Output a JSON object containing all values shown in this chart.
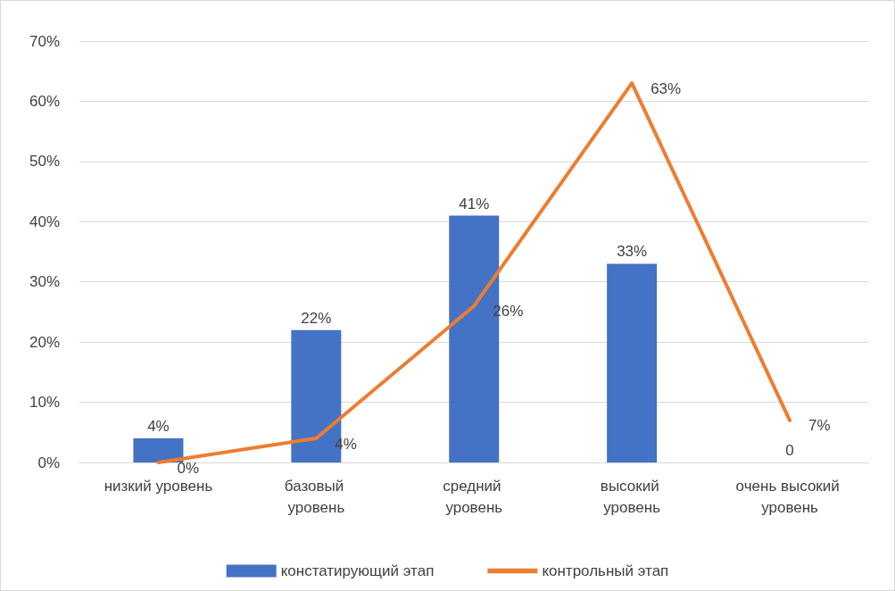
{
  "chart_data": {
    "type": "bar",
    "categories": [
      "низкий уровень",
      "базовый уровень",
      "средний уровень",
      "высокий уровень",
      "очень высокий уровень"
    ],
    "series": [
      {
        "name": "констатирующий этап",
        "color": "#4472c4",
        "values": [
          4,
          22,
          41,
          33,
          0
        ],
        "value_labels": [
          "4%",
          "22%",
          "41%",
          "33%",
          "0"
        ]
      },
      {
        "name": "контрольный этап",
        "type": "line",
        "color": "#ed7d31",
        "marker": "none",
        "values": [
          0,
          4,
          26,
          63,
          7
        ],
        "value_labels": [
          "0%",
          "4%",
          "26%",
          "63%",
          "7%"
        ]
      }
    ],
    "ylim": [
      0,
      70
    ],
    "yticks": [
      {
        "value": 0,
        "label": "0%"
      },
      {
        "value": 10,
        "label": "10%"
      },
      {
        "value": 20,
        "label": "20%"
      },
      {
        "value": 30,
        "label": "30%"
      },
      {
        "value": 40,
        "label": "40%"
      },
      {
        "value": 50,
        "label": "50%"
      },
      {
        "value": 60,
        "label": "60%"
      },
      {
        "value": 70,
        "label": "70%"
      }
    ],
    "grid": "y",
    "legend": "bottom"
  }
}
